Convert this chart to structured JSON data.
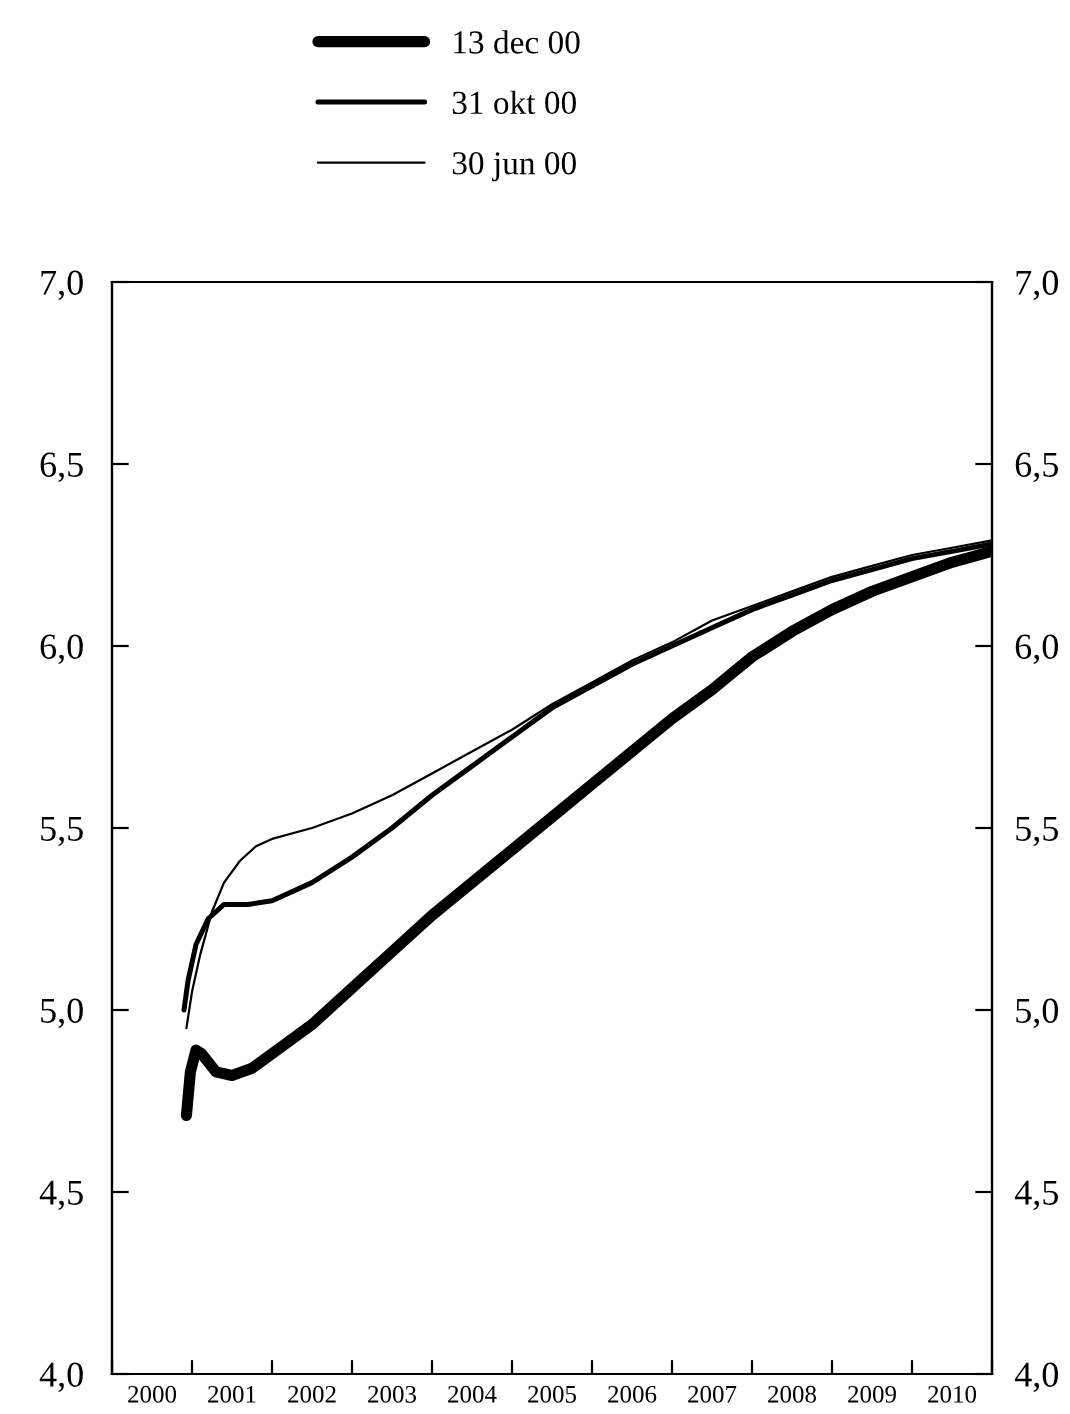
{
  "chart_data": {
    "type": "line",
    "legend": "top",
    "grid": false,
    "xlim": [
      2000,
      2011
    ],
    "xticks": [
      {
        "value": 2000,
        "label": null
      },
      {
        "value": 2001,
        "label": null
      },
      {
        "value": 2002,
        "label": null
      },
      {
        "value": 2003,
        "label": null
      },
      {
        "value": 2004,
        "label": null
      },
      {
        "value": 2005,
        "label": null
      },
      {
        "value": 2006,
        "label": null
      },
      {
        "value": 2007,
        "label": null
      },
      {
        "value": 2008,
        "label": null
      },
      {
        "value": 2009,
        "label": null
      },
      {
        "value": 2010,
        "label": null
      },
      {
        "value": 2011,
        "label": null
      },
      {
        "value": 2000.5,
        "label": "2000"
      },
      {
        "value": 2001.5,
        "label": "2001"
      },
      {
        "value": 2002.5,
        "label": "2002"
      },
      {
        "value": 2003.5,
        "label": "2003"
      },
      {
        "value": 2004.5,
        "label": "2004"
      },
      {
        "value": 2005.5,
        "label": "2005"
      },
      {
        "value": 2006.5,
        "label": "2006"
      },
      {
        "value": 2007.5,
        "label": "2007"
      },
      {
        "value": 2008.5,
        "label": "2008"
      },
      {
        "value": 2009.5,
        "label": "2009"
      },
      {
        "value": 2010.5,
        "label": "2010"
      }
    ],
    "ylim": [
      4,
      7
    ],
    "yticks": [
      {
        "value": 4,
        "label": "4,0"
      },
      {
        "value": 4.5,
        "label": "4,5"
      },
      {
        "value": 5,
        "label": "5,0"
      },
      {
        "value": 5.5,
        "label": "5,5"
      },
      {
        "value": 6,
        "label": "6,0"
      },
      {
        "value": 6.5,
        "label": "6,5"
      },
      {
        "value": 7,
        "label": "7,0"
      }
    ],
    "y2lim": [
      4,
      7
    ],
    "y2ticks": [
      {
        "value": 4,
        "label": "4,0"
      },
      {
        "value": 4.5,
        "label": "4,5"
      },
      {
        "value": 5,
        "label": "5,0"
      },
      {
        "value": 5.5,
        "label": "5,5"
      },
      {
        "value": 6,
        "label": "6,0"
      },
      {
        "value": 6.5,
        "label": "6,5"
      },
      {
        "value": 7,
        "label": "7,0"
      }
    ],
    "series": [
      {
        "name": "13 dec 00",
        "color": "#000000",
        "x": [
          2000.93,
          2000.98,
          2001.05,
          2001.12,
          2001.3,
          2001.5,
          2001.75,
          2002,
          2002.5,
          2003,
          2003.5,
          2004,
          2004.5,
          2005,
          2005.5,
          2006,
          2006.5,
          2007,
          2007.5,
          2008,
          2008.5,
          2009,
          2009.5,
          2010,
          2010.5,
          2011
        ],
        "values": [
          4.71,
          4.83,
          4.89,
          4.88,
          4.83,
          4.82,
          4.84,
          4.88,
          4.96,
          5.06,
          5.16,
          5.26,
          5.35,
          5.44,
          5.53,
          5.62,
          5.71,
          5.8,
          5.88,
          5.97,
          6.04,
          6.1,
          6.15,
          6.19,
          6.23,
          6.26
        ]
      },
      {
        "name": "31 okt 00",
        "color": "#000000",
        "x": [
          2000.9,
          2000.95,
          2001.05,
          2001.2,
          2001.4,
          2001.7,
          2002,
          2002.5,
          2003,
          2003.5,
          2004,
          2004.5,
          2005,
          2005.5,
          2006,
          2006.5,
          2007,
          2007.5,
          2008,
          2008.5,
          2009,
          2009.5,
          2010,
          2010.5,
          2011
        ],
        "values": [
          5.0,
          5.08,
          5.18,
          5.25,
          5.29,
          5.29,
          5.3,
          5.35,
          5.42,
          5.5,
          5.59,
          5.67,
          5.75,
          5.83,
          5.89,
          5.95,
          6.0,
          6.05,
          6.1,
          6.14,
          6.18,
          6.21,
          6.24,
          6.26,
          6.28
        ]
      },
      {
        "name": "30 jun 00",
        "color": "#000000",
        "x": [
          2000.93,
          2001,
          2001.1,
          2001.25,
          2001.4,
          2001.6,
          2001.8,
          2002,
          2002.5,
          2003,
          2003.5,
          2004,
          2004.5,
          2005,
          2005.5,
          2006,
          2006.5,
          2007,
          2007.5,
          2008,
          2008.5,
          2009,
          2009.5,
          2010,
          2010.5,
          2011
        ],
        "values": [
          4.95,
          5.05,
          5.15,
          5.27,
          5.35,
          5.41,
          5.45,
          5.47,
          5.5,
          5.54,
          5.59,
          5.65,
          5.71,
          5.77,
          5.84,
          5.9,
          5.96,
          6.01,
          6.07,
          6.11,
          6.15,
          6.19,
          6.22,
          6.25,
          6.27,
          6.29
        ]
      }
    ]
  }
}
